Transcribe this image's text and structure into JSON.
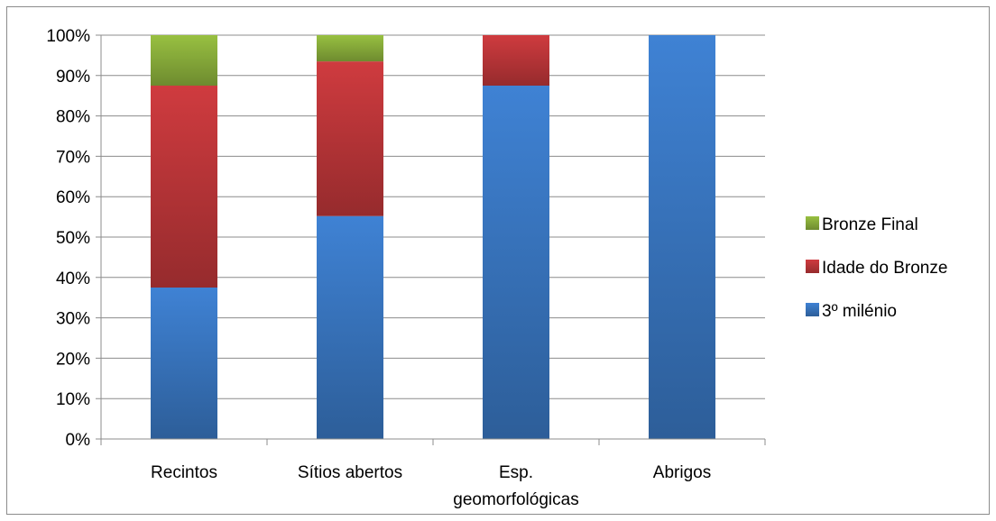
{
  "chart_data": {
    "type": "bar",
    "stacked": true,
    "percent": true,
    "categories": [
      "Recintos",
      "Sítios abertos",
      "Esp. geomorfológicas",
      "Abrigos"
    ],
    "category_lines": [
      [
        "Recintos"
      ],
      [
        "Sítios abertos"
      ],
      [
        "Esp.",
        "geomorfológicas"
      ],
      [
        "Abrigos"
      ]
    ],
    "series": [
      {
        "name": "3º milénio",
        "values": [
          37.5,
          55.2,
          87.5,
          100
        ],
        "color": "#3a78c4"
      },
      {
        "name": "Idade do Bronze",
        "values": [
          50.0,
          38.3,
          12.5,
          0
        ],
        "color": "#c0373a"
      },
      {
        "name": "Bronze Final",
        "values": [
          12.5,
          6.5,
          0,
          0
        ],
        "color": "#8db23c"
      }
    ],
    "ylim": [
      0,
      100
    ],
    "yticks": [
      "0%",
      "10%",
      "20%",
      "30%",
      "40%",
      "50%",
      "60%",
      "70%",
      "80%",
      "90%",
      "100%"
    ],
    "grid": true,
    "legend": "right",
    "legend_order": [
      "Bronze Final",
      "Idade do Bronze",
      "3º milénio"
    ],
    "title": "",
    "xlabel": "",
    "ylabel": ""
  }
}
